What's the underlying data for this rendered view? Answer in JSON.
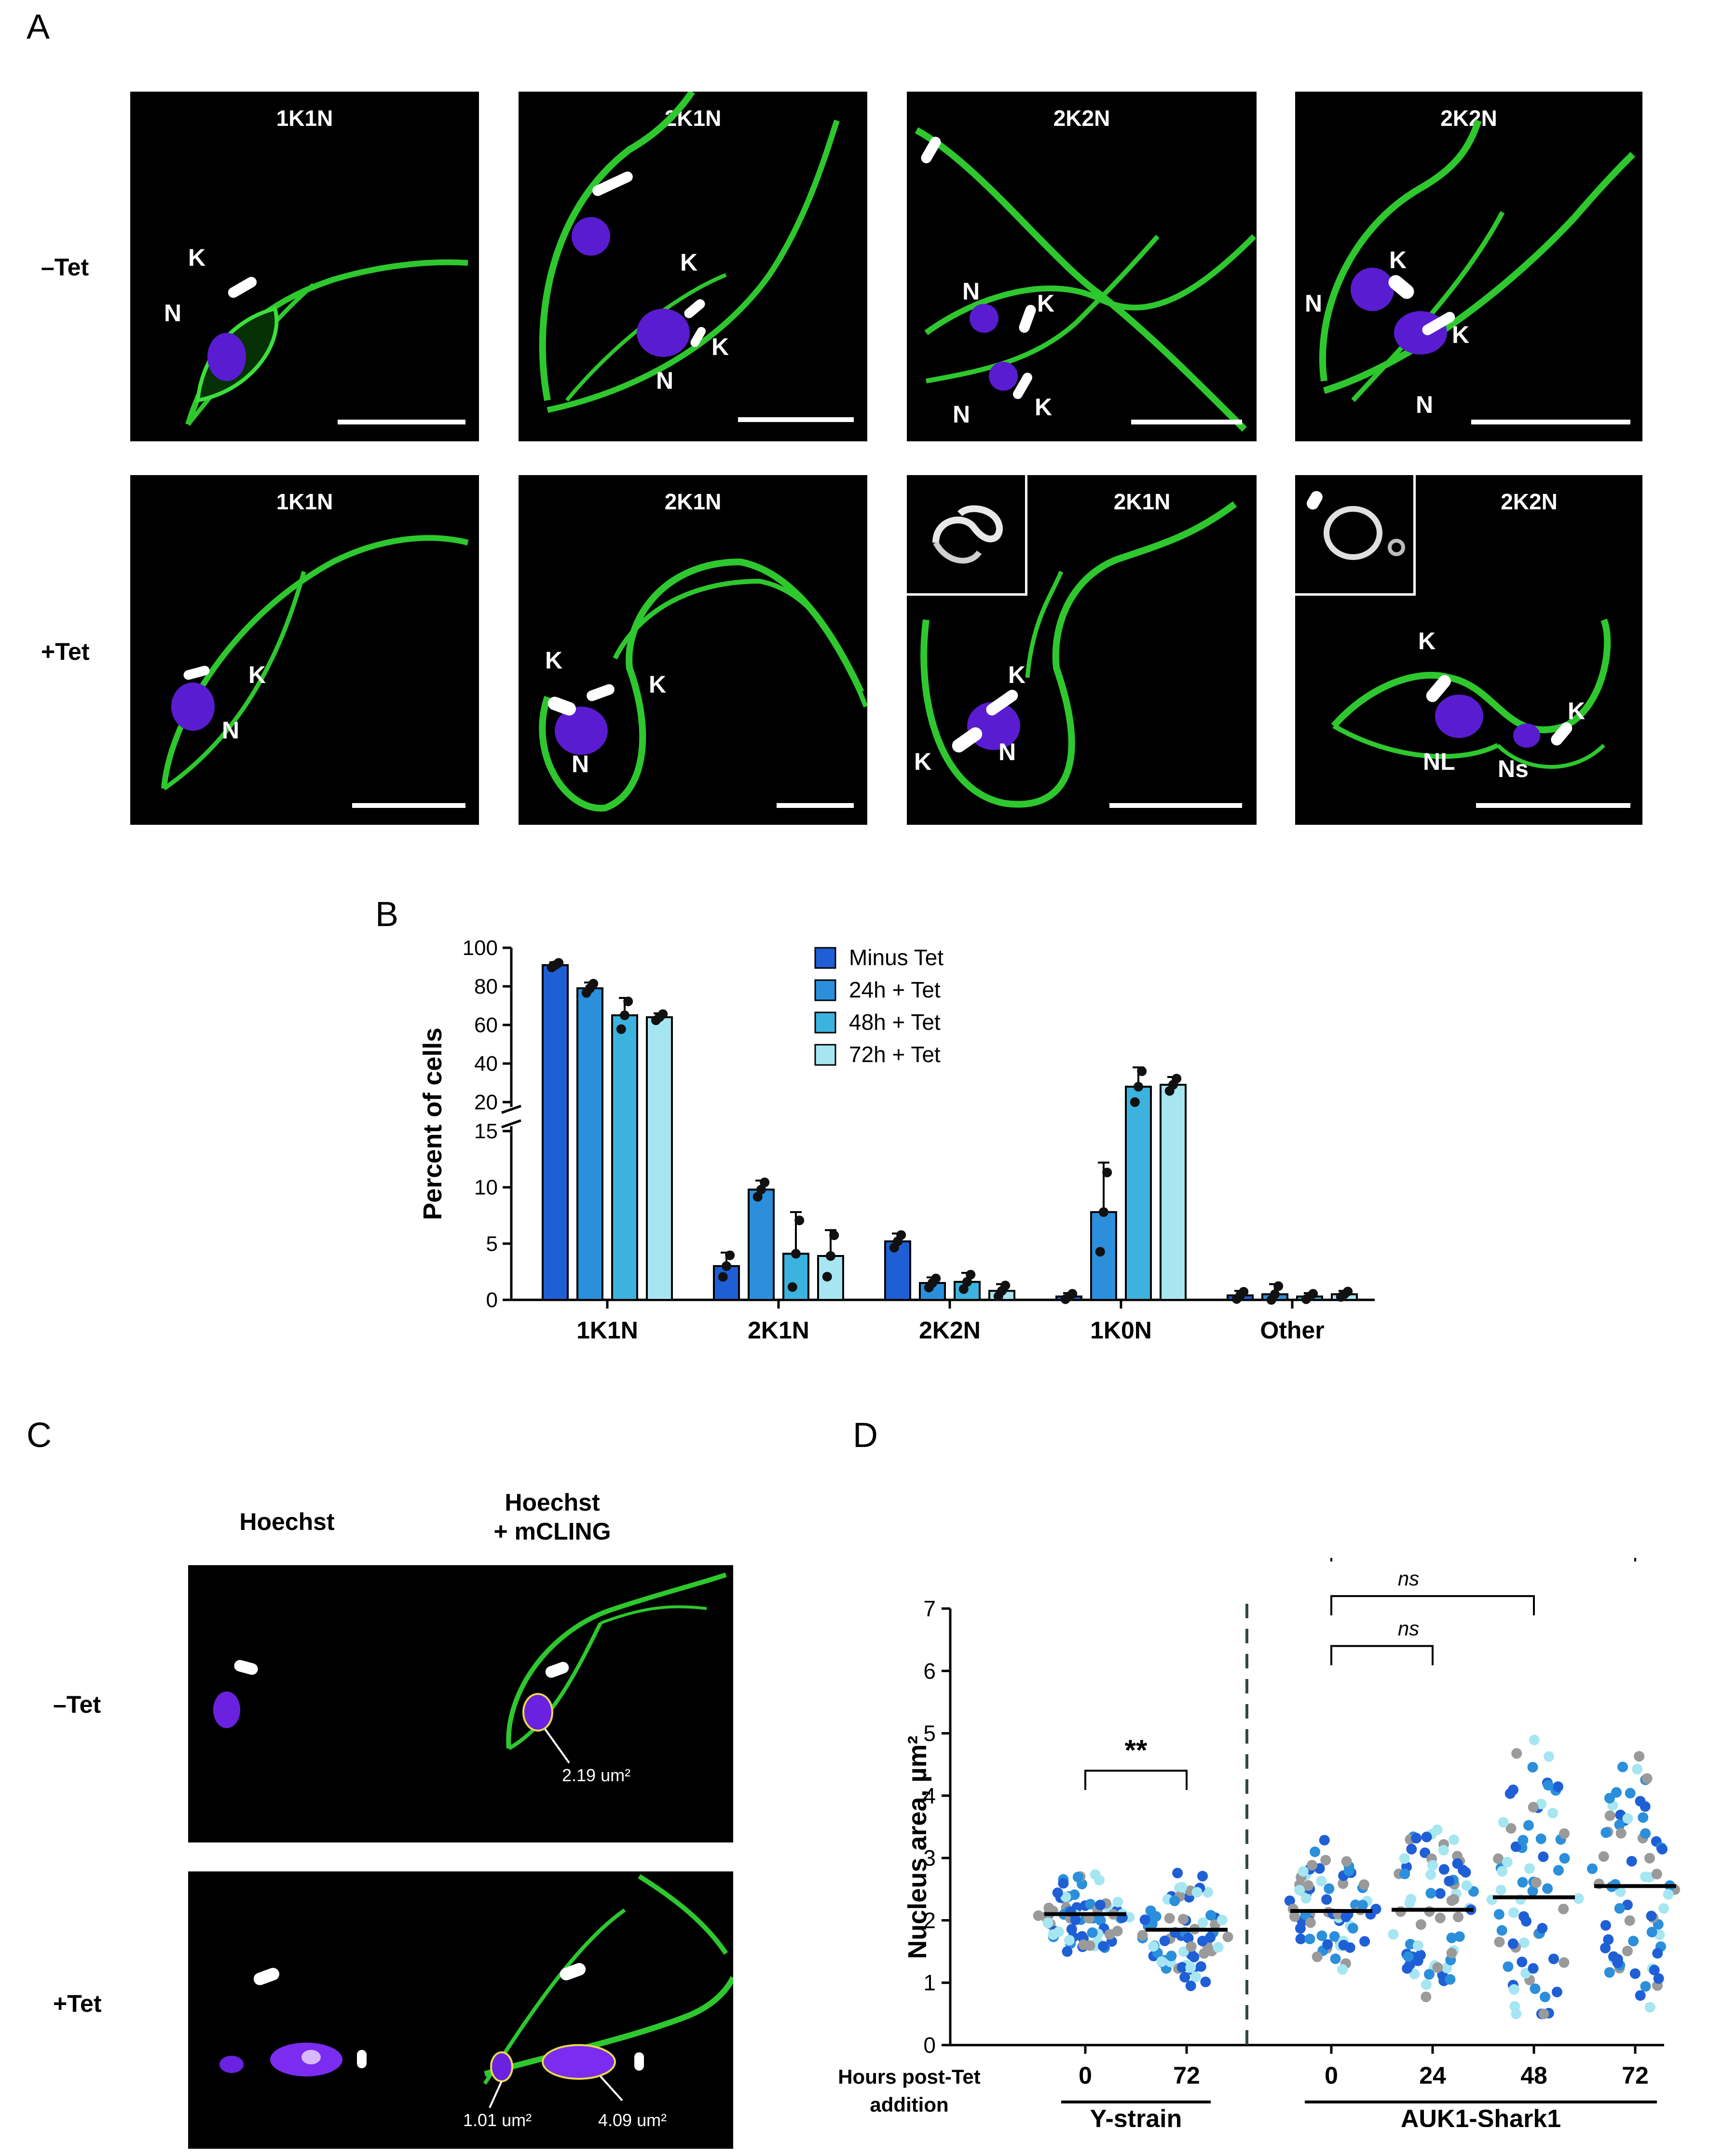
{
  "panels": {
    "a": "A",
    "b": "B",
    "c": "C",
    "d": "D"
  },
  "panel_a": {
    "row_labels": [
      "–Tet",
      "+Tet"
    ],
    "minus_tet": [
      "1K1N",
      "2K1N",
      "2K2N",
      "2K2N"
    ],
    "plus_tet": [
      "1K1N",
      "2K1N",
      "2K1N",
      "2K2N"
    ],
    "marker_labels": {
      "k": "K",
      "n": "N",
      "nl": "NL",
      "ns": "Ns"
    }
  },
  "panel_c": {
    "col_headers": [
      "Hoechst",
      "Hoechst\n+ mCLING"
    ],
    "row_labels": [
      "–Tet",
      "+Tet"
    ],
    "areas": [
      "2.19 um²",
      "1.01 um²",
      "4.09 um²"
    ]
  },
  "colors": {
    "minus_tet": "#1f5fd6",
    "h24": "#2b8fdb",
    "h48": "#3bb3de",
    "h72": "#a6e6f2",
    "gray": "#9a9a9a"
  },
  "chart_data": [
    {
      "type": "bar",
      "ylabel": "Percent of cells",
      "categories": [
        "1K1N",
        "2K1N",
        "2K2N",
        "1K0N",
        "Other"
      ],
      "y_ticks_lower": [
        "0",
        "5",
        "10",
        "15"
      ],
      "y_ticks_upper": [
        "20",
        "40",
        "60",
        "80",
        "100"
      ],
      "y_break": [
        15,
        20
      ],
      "series": [
        {
          "name": "Minus Tet",
          "values": [
            91,
            3,
            5.2,
            0.3,
            0.4
          ]
        },
        {
          "name": "24h + Tet",
          "values": [
            79,
            9.8,
            1.5,
            7.8,
            0.5
          ]
        },
        {
          "name": "48h + Tet",
          "values": [
            65,
            4.1,
            1.6,
            28,
            0.3
          ]
        },
        {
          "name": "72h + Tet",
          "values": [
            64,
            3.9,
            0.8,
            29,
            0.5
          ]
        }
      ],
      "errors": [
        [
          1.5,
          1.2,
          0.7,
          0.3,
          0.4
        ],
        [
          3,
          0.8,
          0.5,
          4.4,
          0.9
        ],
        [
          9,
          3.7,
          0.8,
          10,
          0.3
        ],
        [
          2,
          2.3,
          0.6,
          4,
          0.3
        ]
      ],
      "legend_position": "top-right"
    },
    {
      "type": "scatter",
      "ylabel": "Nucleus area, µm²",
      "ylim": [
        0,
        7
      ],
      "yticks": [
        "0",
        "1",
        "2",
        "3",
        "4",
        "5",
        "6",
        "7"
      ],
      "x_title": "Hours post-Tet\naddition",
      "groups": [
        {
          "label": "0",
          "strain": "Y-strain",
          "median": 2.1
        },
        {
          "label": "72",
          "strain": "Y-strain",
          "median": 1.85
        },
        {
          "label": "0",
          "strain": "AUK1-Shark1",
          "median": 2.15
        },
        {
          "label": "24",
          "strain": "AUK1-Shark1",
          "median": 2.17
        },
        {
          "label": "48",
          "strain": "AUK1-Shark1",
          "median": 2.37
        },
        {
          "label": "72",
          "strain": "AUK1-Shark1",
          "median": 2.55
        }
      ],
      "strains": [
        "Y-strain",
        "AUK1-Shark1"
      ],
      "significance": [
        {
          "from": 0,
          "to": 1,
          "label": "**"
        },
        {
          "from": 2,
          "to": 3,
          "label": "ns"
        },
        {
          "from": 2,
          "to": 4,
          "label": "ns"
        },
        {
          "from": 2,
          "to": 5,
          "label": "*"
        }
      ]
    }
  ]
}
